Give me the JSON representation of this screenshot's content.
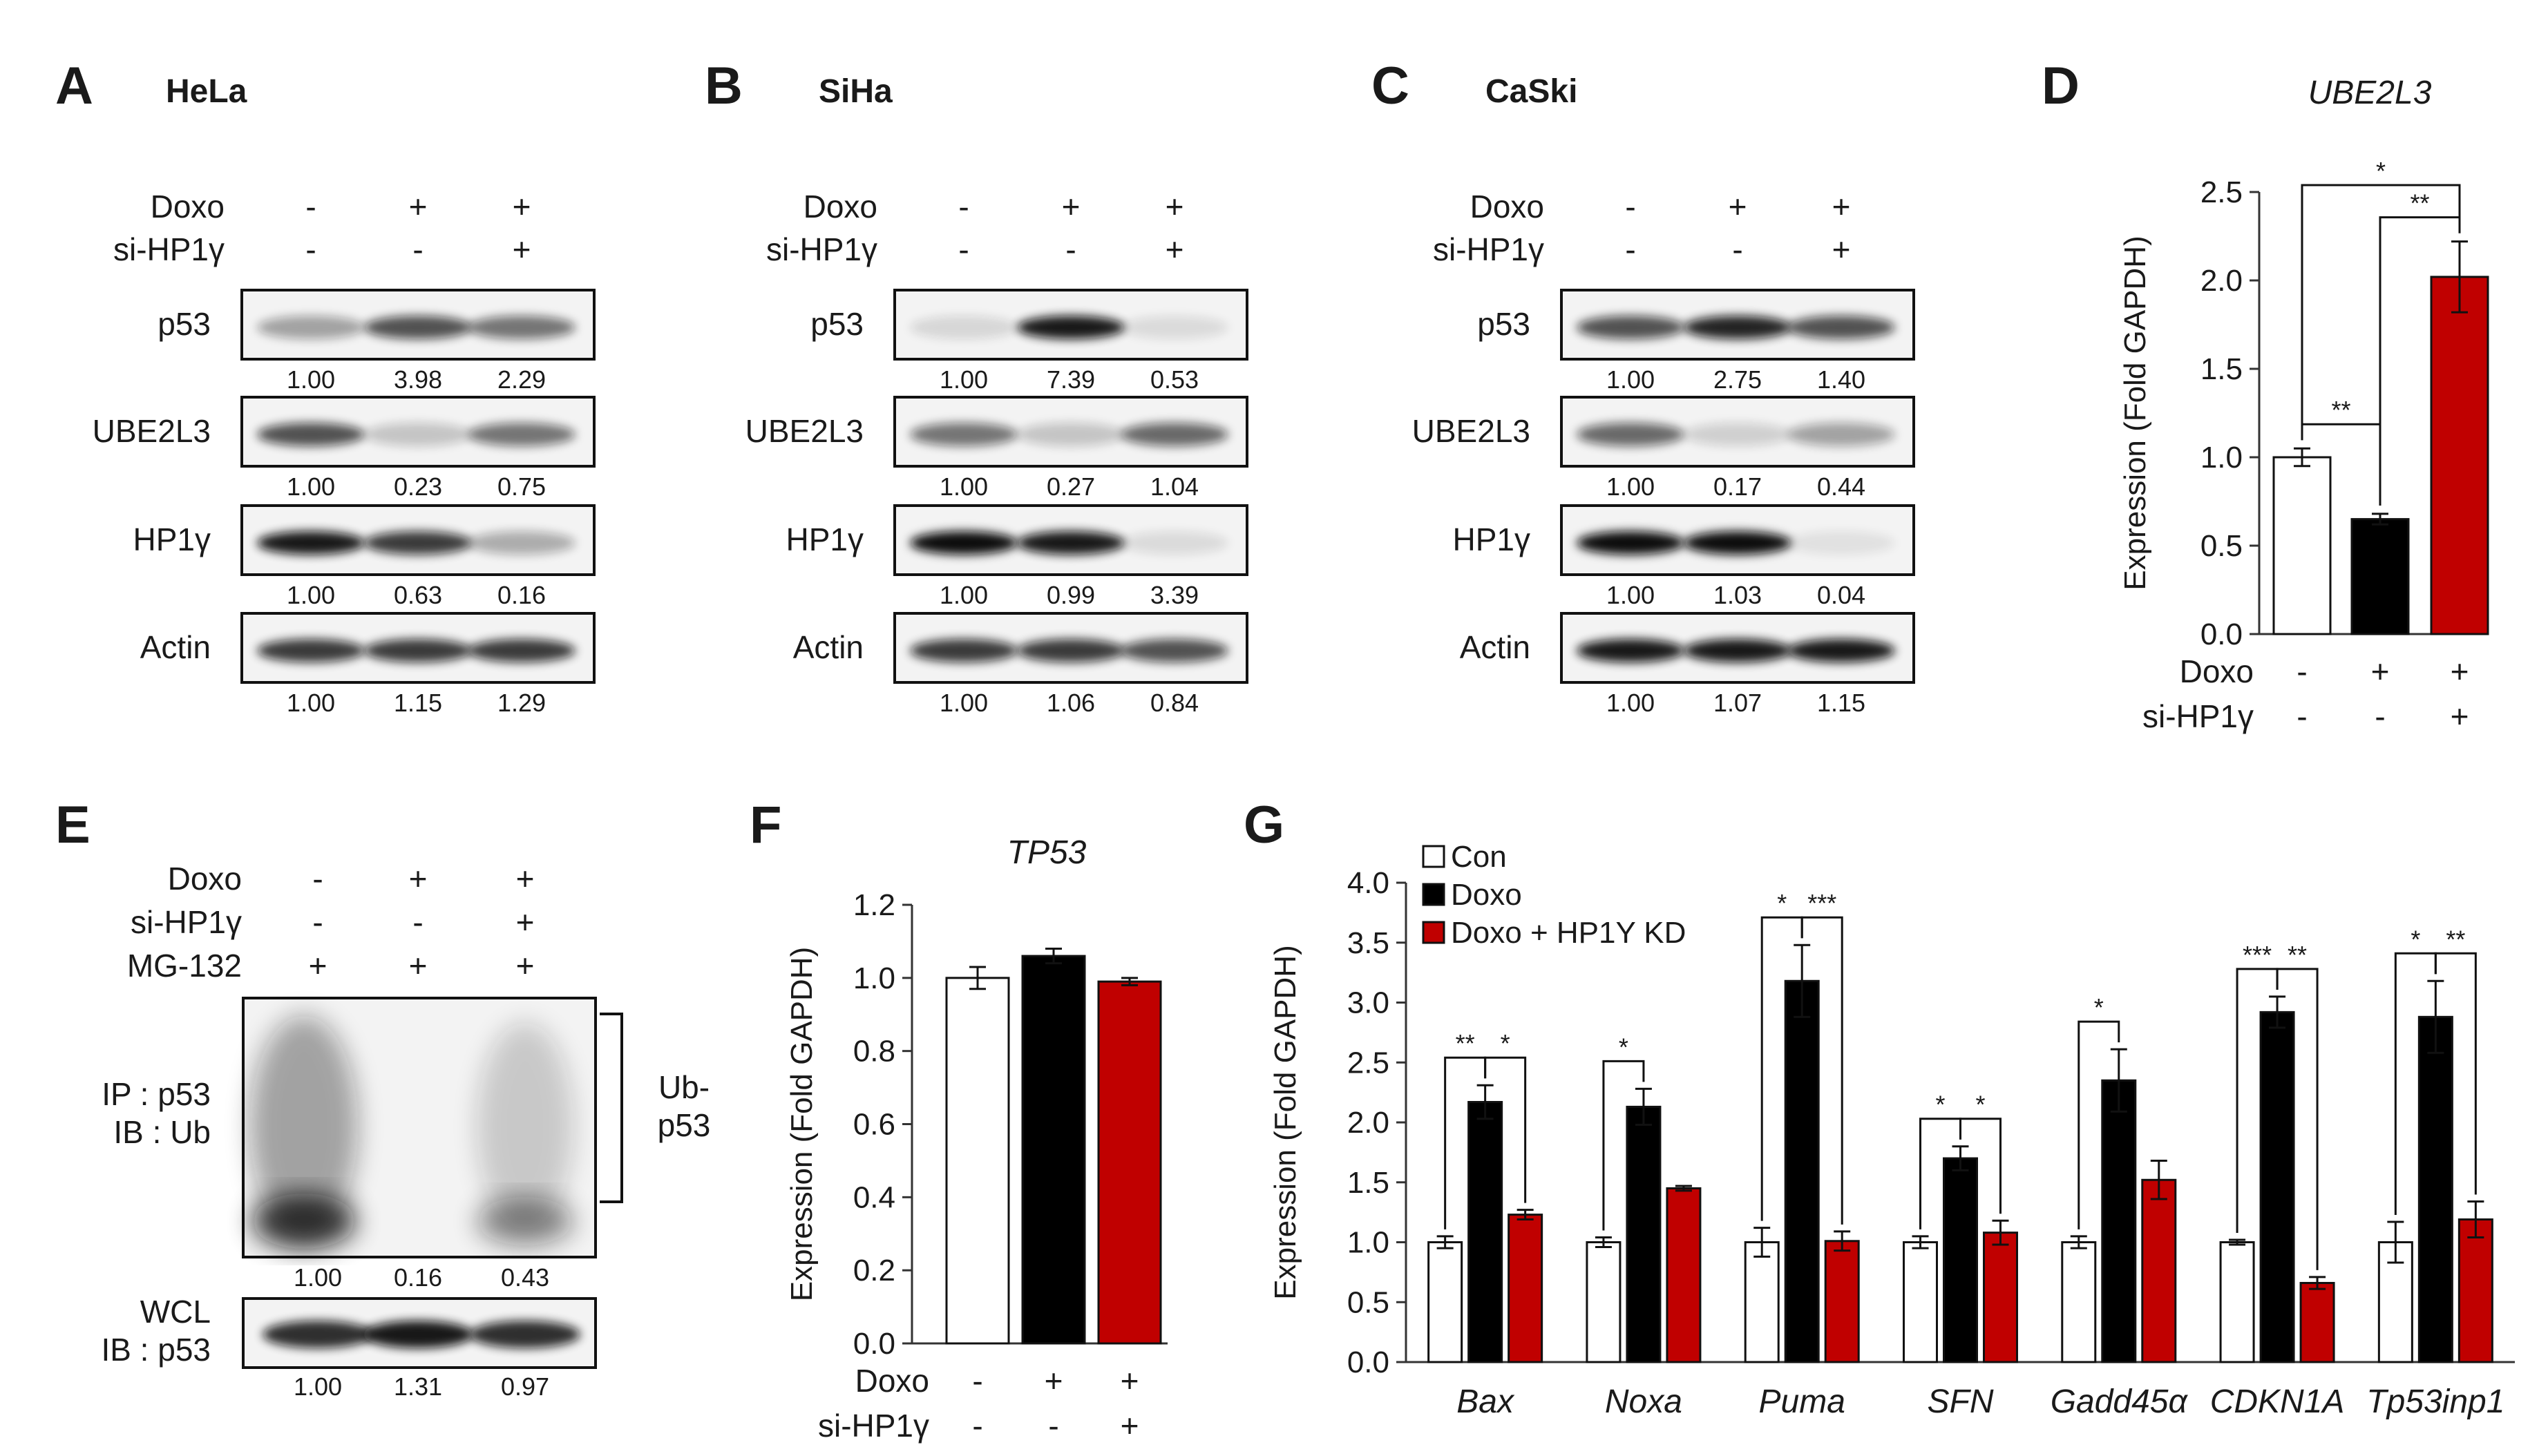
{
  "panels": {
    "A": "A",
    "B": "B",
    "C": "C",
    "D": "D",
    "E": "E",
    "F": "F",
    "G": "G"
  },
  "blots": [
    {
      "cell": "HeLa",
      "treatments": [
        {
          "label": "Doxo",
          "signs": [
            "-",
            "+",
            "+"
          ]
        },
        {
          "label": "si-HP1γ",
          "signs": [
            "-",
            "-",
            "+"
          ]
        }
      ],
      "rows": [
        {
          "label": "p53",
          "values": [
            "1.00",
            "3.98",
            "2.29"
          ],
          "intensity": [
            0.35,
            0.7,
            0.55
          ]
        },
        {
          "label": "UBE2L3",
          "values": [
            "1.00",
            "0.23",
            "0.75"
          ],
          "intensity": [
            0.7,
            0.2,
            0.55
          ]
        },
        {
          "label": "HP1γ",
          "values": [
            "1.00",
            "0.63",
            "0.16"
          ],
          "intensity": [
            0.95,
            0.8,
            0.3
          ]
        },
        {
          "label": "Actin",
          "values": [
            "1.00",
            "1.15",
            "1.29"
          ],
          "intensity": [
            0.8,
            0.8,
            0.8
          ]
        }
      ]
    },
    {
      "cell": "SiHa",
      "treatments": [
        {
          "label": "Doxo",
          "signs": [
            "-",
            "+",
            "+"
          ]
        },
        {
          "label": "si-HP1γ",
          "signs": [
            "-",
            "-",
            "+"
          ]
        }
      ],
      "rows": [
        {
          "label": "p53",
          "values": [
            "1.00",
            "7.39",
            "0.53"
          ],
          "intensity": [
            0.12,
            0.95,
            0.1
          ]
        },
        {
          "label": "UBE2L3",
          "values": [
            "1.00",
            "0.27",
            "1.04"
          ],
          "intensity": [
            0.55,
            0.2,
            0.6
          ]
        },
        {
          "label": "HP1γ",
          "values": [
            "1.00",
            "0.99",
            "3.39"
          ],
          "intensity": [
            1.0,
            0.95,
            0.1
          ]
        },
        {
          "label": "Actin",
          "values": [
            "1.00",
            "1.06",
            "0.84"
          ],
          "intensity": [
            0.8,
            0.8,
            0.7
          ]
        }
      ]
    },
    {
      "cell": "CaSki",
      "treatments": [
        {
          "label": "Doxo",
          "signs": [
            "-",
            "+",
            "+"
          ]
        },
        {
          "label": "si-HP1γ",
          "signs": [
            "-",
            "-",
            "+"
          ]
        }
      ],
      "rows": [
        {
          "label": "p53",
          "values": [
            "1.00",
            "2.75",
            "1.40"
          ],
          "intensity": [
            0.7,
            0.9,
            0.7
          ]
        },
        {
          "label": "UBE2L3",
          "values": [
            "1.00",
            "0.17",
            "0.44"
          ],
          "intensity": [
            0.6,
            0.15,
            0.35
          ]
        },
        {
          "label": "HP1γ",
          "values": [
            "1.00",
            "1.03",
            "0.04"
          ],
          "intensity": [
            1.0,
            1.0,
            0.08
          ]
        },
        {
          "label": "Actin",
          "values": [
            "1.00",
            "1.07",
            "1.15"
          ],
          "intensity": [
            0.95,
            0.95,
            0.95
          ]
        }
      ]
    }
  ],
  "panel_e": {
    "treatments": [
      {
        "label": "Doxo",
        "signs": [
          "-",
          "+",
          "+"
        ]
      },
      {
        "label": "si-HP1γ",
        "signs": [
          "-",
          "-",
          "+"
        ]
      },
      {
        "label": "MG-132",
        "signs": [
          "+",
          "+",
          "+"
        ]
      }
    ],
    "ip_label": [
      "IP : p53",
      "IB : Ub"
    ],
    "ub_label": [
      "Ub-",
      "p53"
    ],
    "ip_values": [
      "1.00",
      "0.16",
      "0.43"
    ],
    "wcl_label": [
      "WCL",
      "IB : p53"
    ],
    "wcl_values": [
      "1.00",
      "1.31",
      "0.97"
    ]
  },
  "chart_data": [
    {
      "panel": "D",
      "type": "bar",
      "title": "UBE2L3",
      "ylabel": "Expression (Fold GAPDH)",
      "ylim": [
        0,
        2.5
      ],
      "yticks": [
        "0.0",
        "0.5",
        "1.0",
        "1.5",
        "2.0",
        "2.5"
      ],
      "values": [
        1.0,
        0.65,
        2.02
      ],
      "errors": [
        0.05,
        0.03,
        0.2
      ],
      "colors": [
        "#ffffff",
        "#000000",
        "#c00000"
      ],
      "treatments": [
        {
          "label": "Doxo",
          "signs": [
            "-",
            "+",
            "+"
          ]
        },
        {
          "label": "si-HP1γ",
          "signs": [
            "-",
            "-",
            "+"
          ]
        }
      ],
      "significance": [
        {
          "from": 0,
          "to": 1,
          "text": "**"
        },
        {
          "from": 1,
          "to": 2,
          "text": "**"
        },
        {
          "from": 0,
          "to": 2,
          "text": "*"
        }
      ]
    },
    {
      "panel": "F",
      "type": "bar",
      "title": "TP53",
      "ylabel": "Expression (Fold GAPDH)",
      "ylim": [
        0,
        1.2
      ],
      "yticks": [
        "0.0",
        "0.2",
        "0.4",
        "0.6",
        "0.8",
        "1.0",
        "1.2"
      ],
      "values": [
        1.0,
        1.06,
        0.99
      ],
      "errors": [
        0.03,
        0.02,
        0.01
      ],
      "colors": [
        "#ffffff",
        "#000000",
        "#c00000"
      ],
      "treatments": [
        {
          "label": "Doxo",
          "signs": [
            "-",
            "+",
            "+"
          ]
        },
        {
          "label": "si-HP1γ",
          "signs": [
            "-",
            "-",
            "+"
          ]
        }
      ]
    },
    {
      "panel": "G",
      "type": "bar",
      "ylabel": "Expression (Fold GAPDH)",
      "ylim": [
        0,
        4.0
      ],
      "yticks": [
        "0.0",
        "0.5",
        "1.0",
        "1.5",
        "2.0",
        "2.5",
        "3.0",
        "3.5",
        "4.0"
      ],
      "categories": [
        "Bax",
        "Noxa",
        "Puma",
        "SFN",
        "Gadd45α",
        "CDKN1A",
        "Tp53inp1"
      ],
      "series": [
        {
          "name": "Con",
          "color": "#ffffff",
          "values": [
            1.0,
            1.0,
            1.0,
            1.0,
            1.0,
            1.0,
            1.0
          ],
          "errors": [
            0.05,
            0.04,
            0.12,
            0.05,
            0.05,
            0.02,
            0.17
          ]
        },
        {
          "name": "Doxo",
          "color": "#000000",
          "values": [
            2.17,
            2.13,
            3.18,
            1.7,
            2.35,
            2.92,
            2.88
          ],
          "errors": [
            0.14,
            0.15,
            0.3,
            0.1,
            0.26,
            0.13,
            0.3
          ]
        },
        {
          "name": "Doxo + HP1Y KD",
          "color": "#c00000",
          "values": [
            1.23,
            1.45,
            1.01,
            1.08,
            1.52,
            0.66,
            1.19
          ],
          "errors": [
            0.04,
            0.02,
            0.08,
            0.1,
            0.16,
            0.05,
            0.15
          ]
        }
      ],
      "significance": [
        {
          "cat": 0,
          "pairs": [
            {
              "from": 0,
              "to": 1,
              "text": "**"
            },
            {
              "from": 1,
              "to": 2,
              "text": "*"
            }
          ]
        },
        {
          "cat": 1,
          "pairs": [
            {
              "from": 0,
              "to": 1,
              "text": "*"
            }
          ]
        },
        {
          "cat": 2,
          "pairs": [
            {
              "from": 0,
              "to": 1,
              "text": "*"
            },
            {
              "from": 1,
              "to": 2,
              "text": "***"
            }
          ]
        },
        {
          "cat": 3,
          "pairs": [
            {
              "from": 0,
              "to": 1,
              "text": "*"
            },
            {
              "from": 1,
              "to": 2,
              "text": "*"
            }
          ]
        },
        {
          "cat": 4,
          "pairs": [
            {
              "from": 0,
              "to": 1,
              "text": "*"
            }
          ]
        },
        {
          "cat": 5,
          "pairs": [
            {
              "from": 0,
              "to": 1,
              "text": "***"
            },
            {
              "from": 1,
              "to": 2,
              "text": "**"
            }
          ]
        },
        {
          "cat": 6,
          "pairs": [
            {
              "from": 0,
              "to": 1,
              "text": "*"
            },
            {
              "from": 1,
              "to": 2,
              "text": "**"
            }
          ]
        }
      ]
    }
  ]
}
